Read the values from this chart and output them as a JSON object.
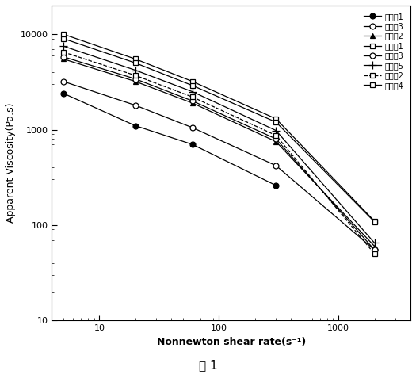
{
  "title": "图 1",
  "xlabel": "Nonnewton shear rate(s⁻¹)",
  "ylabel": "Apparent Viscosity(Pa.s)",
  "series": [
    {
      "label": "实施例1",
      "marker": "o",
      "fillstyle": "full",
      "color": "black",
      "linestyle": "-",
      "x": [
        5,
        20,
        60,
        300
      ],
      "y": [
        2400,
        1100,
        700,
        260
      ]
    },
    {
      "label": "对比例3",
      "marker": "o",
      "fillstyle": "none",
      "color": "black",
      "linestyle": "-",
      "x": [
        5,
        20,
        60,
        300,
        2000
      ],
      "y": [
        3200,
        1800,
        1050,
        420,
        55
      ]
    },
    {
      "label": "对比例2",
      "marker": "^",
      "fillstyle": "full",
      "color": "black",
      "linestyle": "-",
      "x": [
        5,
        20,
        60,
        300,
        2000
      ],
      "y": [
        5500,
        3200,
        1900,
        750,
        60
      ]
    },
    {
      "label": "对比例1",
      "marker": "s",
      "fillstyle": "none",
      "color": "black",
      "linestyle": "-",
      "x": [
        5,
        20,
        60,
        300,
        2000
      ],
      "y": [
        10000,
        5500,
        3200,
        1300,
        110
      ]
    },
    {
      "label": "实施例3",
      "marker": "o",
      "fillstyle": "none",
      "color": "black",
      "linestyle": "-",
      "x": [
        5,
        20,
        60,
        300,
        2000
      ],
      "y": [
        5800,
        3400,
        2000,
        800,
        55
      ]
    },
    {
      "label": "对比例5",
      "marker": "+",
      "fillstyle": "none",
      "color": "black",
      "linestyle": "-",
      "x": [
        5,
        20,
        60,
        300,
        2000
      ],
      "y": [
        7500,
        4200,
        2500,
        980,
        65
      ]
    },
    {
      "label": "实施例2",
      "marker": "s",
      "fillstyle": "none",
      "color": "black",
      "linestyle": "--",
      "x": [
        5,
        20,
        60,
        300,
        2000
      ],
      "y": [
        6500,
        3700,
        2200,
        870,
        50
      ]
    },
    {
      "label": "对比例4",
      "marker": "s",
      "fillstyle": "none",
      "color": "black",
      "linestyle": "-",
      "x": [
        5,
        20,
        60,
        300,
        2000
      ],
      "y": [
        9000,
        5000,
        2900,
        1200,
        108
      ]
    }
  ],
  "xlim": [
    4,
    4000
  ],
  "ylim": [
    10,
    20000
  ],
  "figsize": [
    5.25,
    4.73
  ],
  "dpi": 100
}
